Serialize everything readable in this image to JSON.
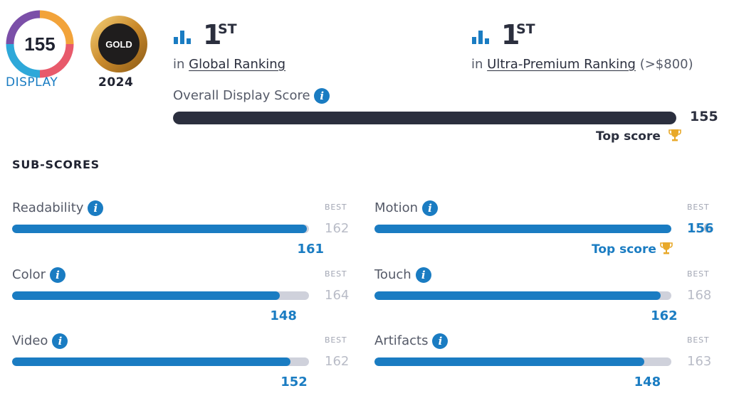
{
  "badge": {
    "score": "155",
    "label": "DISPLAY"
  },
  "medal": {
    "text": "GOLD",
    "year": "2024"
  },
  "rankings": [
    {
      "number": "1",
      "suffix": "ST",
      "prefix": "in",
      "link": "Global Ranking",
      "note": ""
    },
    {
      "number": "1",
      "suffix": "ST",
      "prefix": "in",
      "link": "Ultra-Premium Ranking",
      "note": "(>$800)"
    }
  ],
  "overall": {
    "label": "Overall Display Score",
    "value": 155,
    "max": 155,
    "top_score_label": "Top score"
  },
  "sub_scores_title": "SUB-SCORES",
  "best_label": "BEST",
  "sub_scores": [
    {
      "label": "Readability",
      "value": 161,
      "best": 162,
      "top": false
    },
    {
      "label": "Motion",
      "value": 156,
      "best": 156,
      "top": true,
      "top_label": "Top score"
    },
    {
      "label": "Color",
      "value": 148,
      "best": 164,
      "top": false
    },
    {
      "label": "Touch",
      "value": 162,
      "best": 168,
      "top": false
    },
    {
      "label": "Video",
      "value": 152,
      "best": 162,
      "top": false
    },
    {
      "label": "Artifacts",
      "value": 148,
      "best": 163,
      "top": false
    }
  ],
  "colors": {
    "accent": "#1a7cc2",
    "dark": "#2b2f3e",
    "track": "#cfd1db",
    "gold": "#e8a92a"
  }
}
